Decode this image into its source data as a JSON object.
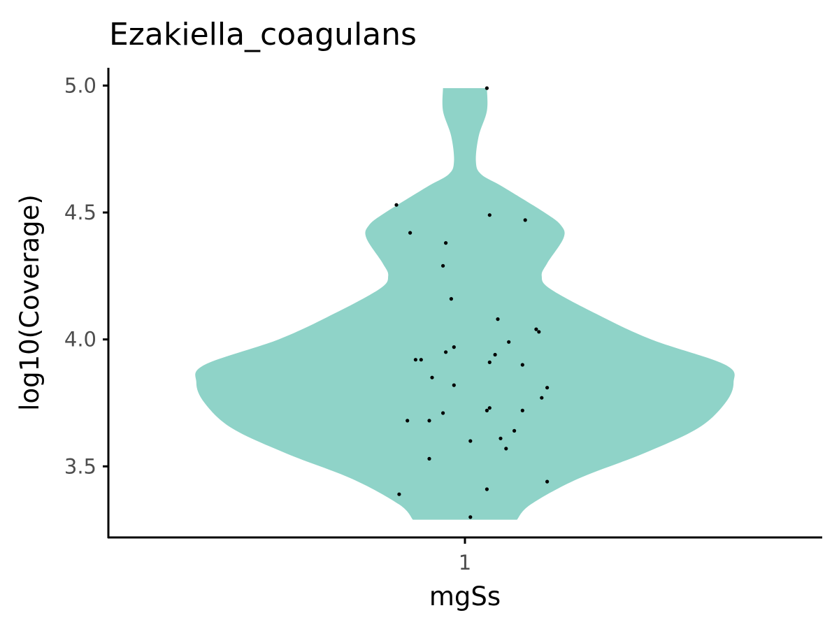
{
  "chart_data": {
    "type": "violin",
    "title": "Ezakiella_coagulans",
    "xlabel": "mgSs",
    "ylabel": "log10(Coverage)",
    "categories": [
      "1"
    ],
    "ylim": [
      3.22,
      5.07
    ],
    "yticks": [
      "3.5",
      "4.0",
      "4.5",
      "5.0"
    ],
    "grid": false,
    "legend": "none",
    "colors": {
      "violin": "#8fd3c8",
      "points": "#000000",
      "axis": "#000000",
      "tick_text": "#4d4d4d"
    },
    "violin_profile": {
      "y": [
        3.29,
        3.35,
        3.45,
        3.55,
        3.65,
        3.75,
        3.83,
        3.9,
        4.0,
        4.1,
        4.2,
        4.25,
        4.3,
        4.4,
        4.45,
        4.5,
        4.6,
        4.65,
        4.7,
        4.8,
        4.9,
        4.99
      ],
      "half_width": [
        0.19,
        0.24,
        0.41,
        0.65,
        0.85,
        0.95,
        0.98,
        0.95,
        0.68,
        0.48,
        0.31,
        0.28,
        0.3,
        0.36,
        0.35,
        0.29,
        0.14,
        0.06,
        0.04,
        0.05,
        0.08,
        0.08
      ]
    },
    "points": [
      {
        "x": 0.75,
        "y": 4.53
      },
      {
        "x": 0.8,
        "y": 4.42
      },
      {
        "x": 1.09,
        "y": 4.49
      },
      {
        "x": 1.22,
        "y": 4.47
      },
      {
        "x": 1.08,
        "y": 4.99
      },
      {
        "x": 0.93,
        "y": 4.38
      },
      {
        "x": 0.92,
        "y": 4.29
      },
      {
        "x": 0.95,
        "y": 4.16
      },
      {
        "x": 1.12,
        "y": 4.08
      },
      {
        "x": 1.26,
        "y": 4.04
      },
      {
        "x": 1.27,
        "y": 4.03
      },
      {
        "x": 1.16,
        "y": 3.99
      },
      {
        "x": 0.96,
        "y": 3.97
      },
      {
        "x": 0.93,
        "y": 3.95
      },
      {
        "x": 1.11,
        "y": 3.94
      },
      {
        "x": 0.82,
        "y": 3.92
      },
      {
        "x": 0.84,
        "y": 3.92
      },
      {
        "x": 1.09,
        "y": 3.91
      },
      {
        "x": 1.21,
        "y": 3.9
      },
      {
        "x": 0.88,
        "y": 3.85
      },
      {
        "x": 0.96,
        "y": 3.82
      },
      {
        "x": 1.3,
        "y": 3.81
      },
      {
        "x": 1.28,
        "y": 3.77
      },
      {
        "x": 1.09,
        "y": 3.73
      },
      {
        "x": 1.08,
        "y": 3.72
      },
      {
        "x": 1.21,
        "y": 3.72
      },
      {
        "x": 0.92,
        "y": 3.71
      },
      {
        "x": 0.79,
        "y": 3.68
      },
      {
        "x": 0.87,
        "y": 3.68
      },
      {
        "x": 1.18,
        "y": 3.64
      },
      {
        "x": 1.13,
        "y": 3.61
      },
      {
        "x": 1.02,
        "y": 3.6
      },
      {
        "x": 1.15,
        "y": 3.57
      },
      {
        "x": 0.87,
        "y": 3.53
      },
      {
        "x": 1.3,
        "y": 3.44
      },
      {
        "x": 1.08,
        "y": 3.41
      },
      {
        "x": 0.76,
        "y": 3.39
      },
      {
        "x": 1.02,
        "y": 3.3
      }
    ]
  }
}
